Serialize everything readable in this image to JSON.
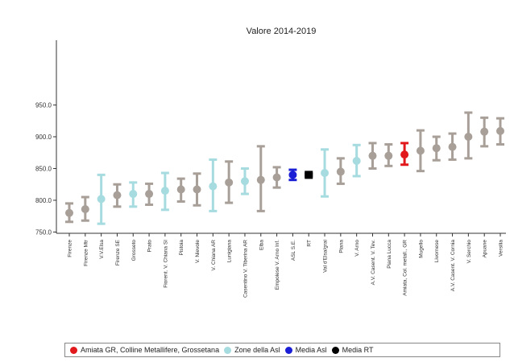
{
  "chart_data": {
    "type": "errorbar",
    "title": "Valore 2014-2019",
    "xlabel": "",
    "ylabel": "",
    "ylim": [
      748,
      1052
    ],
    "yticks": [
      750.0,
      800.0,
      850.0,
      900.0,
      950.0
    ],
    "ytick_labels": [
      "750.0",
      "800.0",
      "850.0",
      "900.0",
      "950.0"
    ],
    "grid": false,
    "legend_position": "bottom",
    "colors": {
      "gray": "#a89f98",
      "light_blue": "#a6dbe0",
      "red": "#e2191c",
      "blue": "#1a1fd6",
      "black": "#000000"
    },
    "points": [
      {
        "label": "Firenze",
        "mean": 780,
        "low": 766,
        "high": 795,
        "color": "gray",
        "marker": "circle"
      },
      {
        "label": "Firenze Mtr",
        "mean": 786,
        "low": 768,
        "high": 805,
        "color": "gray",
        "marker": "circle"
      },
      {
        "label": "V.V.Elsa",
        "mean": 802,
        "low": 763,
        "high": 840,
        "color": "light_blue",
        "marker": "circle"
      },
      {
        "label": "Firenze SE",
        "mean": 808,
        "low": 790,
        "high": 825,
        "color": "gray",
        "marker": "circle"
      },
      {
        "label": "Grosseto",
        "mean": 810,
        "low": 790,
        "high": 828,
        "color": "light_blue",
        "marker": "circle"
      },
      {
        "label": "Prato",
        "mean": 810,
        "low": 793,
        "high": 826,
        "color": "gray",
        "marker": "circle"
      },
      {
        "label": "Fiorent. V. Chiana SI",
        "mean": 815,
        "low": 785,
        "high": 843,
        "color": "light_blue",
        "marker": "circle"
      },
      {
        "label": "Pistoia",
        "mean": 817,
        "low": 798,
        "high": 834,
        "color": "gray",
        "marker": "circle"
      },
      {
        "label": "V. Nievole",
        "mean": 817,
        "low": 792,
        "high": 842,
        "color": "gray",
        "marker": "circle"
      },
      {
        "label": "V. Chiana AR",
        "mean": 822,
        "low": 783,
        "high": 864,
        "color": "light_blue",
        "marker": "circle"
      },
      {
        "label": "Lunigiana",
        "mean": 828,
        "low": 796,
        "high": 861,
        "color": "gray",
        "marker": "circle"
      },
      {
        "label": "Casentino V. Tiberina AR",
        "mean": 830,
        "low": 810,
        "high": 850,
        "color": "light_blue",
        "marker": "circle"
      },
      {
        "label": "Elba",
        "mean": 832,
        "low": 783,
        "high": 885,
        "color": "gray",
        "marker": "circle"
      },
      {
        "label": "Empolese V. Arno Inf.",
        "mean": 836,
        "low": 820,
        "high": 852,
        "color": "gray",
        "marker": "circle"
      },
      {
        "label": "ASL S.E.",
        "mean": 840,
        "low": 832,
        "high": 848,
        "color": "blue",
        "marker": "circle"
      },
      {
        "label": "RT",
        "mean": 840,
        "low": 838,
        "high": 842,
        "color": "black",
        "marker": "square"
      },
      {
        "label": "Val d'Elsa/grai",
        "mean": 843,
        "low": 806,
        "high": 880,
        "color": "light_blue",
        "marker": "circle"
      },
      {
        "label": "Piana",
        "mean": 845,
        "low": 826,
        "high": 866,
        "color": "gray",
        "marker": "circle"
      },
      {
        "label": "V. Arno",
        "mean": 862,
        "low": 838,
        "high": 887,
        "color": "light_blue",
        "marker": "circle"
      },
      {
        "label": "A.V. Casent. V. Tev.",
        "mean": 870,
        "low": 850,
        "high": 890,
        "color": "gray",
        "marker": "circle"
      },
      {
        "label": "Piana Lucca",
        "mean": 870,
        "low": 854,
        "high": 888,
        "color": "gray",
        "marker": "circle"
      },
      {
        "label": "Amiata, Col. metall., GR",
        "mean": 872,
        "low": 856,
        "high": 890,
        "color": "red",
        "marker": "circle"
      },
      {
        "label": "Mugello",
        "mean": 878,
        "low": 846,
        "high": 910,
        "color": "gray",
        "marker": "circle"
      },
      {
        "label": "Livornese",
        "mean": 882,
        "low": 863,
        "high": 900,
        "color": "gray",
        "marker": "circle"
      },
      {
        "label": "A.V. Casent. V. Cornia",
        "mean": 884,
        "low": 864,
        "high": 905,
        "color": "gray",
        "marker": "circle"
      },
      {
        "label": "V. Serchio",
        "mean": 900,
        "low": 866,
        "high": 938,
        "color": "gray",
        "marker": "circle"
      },
      {
        "label": "Apuane",
        "mean": 908,
        "low": 885,
        "high": 930,
        "color": "gray",
        "marker": "circle"
      },
      {
        "label": "Versilia",
        "mean": 909,
        "low": 888,
        "high": 929,
        "color": "gray",
        "marker": "circle"
      }
    ],
    "legend": [
      {
        "label": "Amiata GR, Colline Metallifere, Grossetana",
        "color": "red",
        "marker": "circle"
      },
      {
        "label": "Zone della Asl",
        "color": "light_blue",
        "marker": "circle"
      },
      {
        "label": "Media Asl",
        "color": "blue",
        "marker": "circle"
      },
      {
        "label": "Media RT",
        "color": "black",
        "marker": "circle"
      }
    ]
  }
}
